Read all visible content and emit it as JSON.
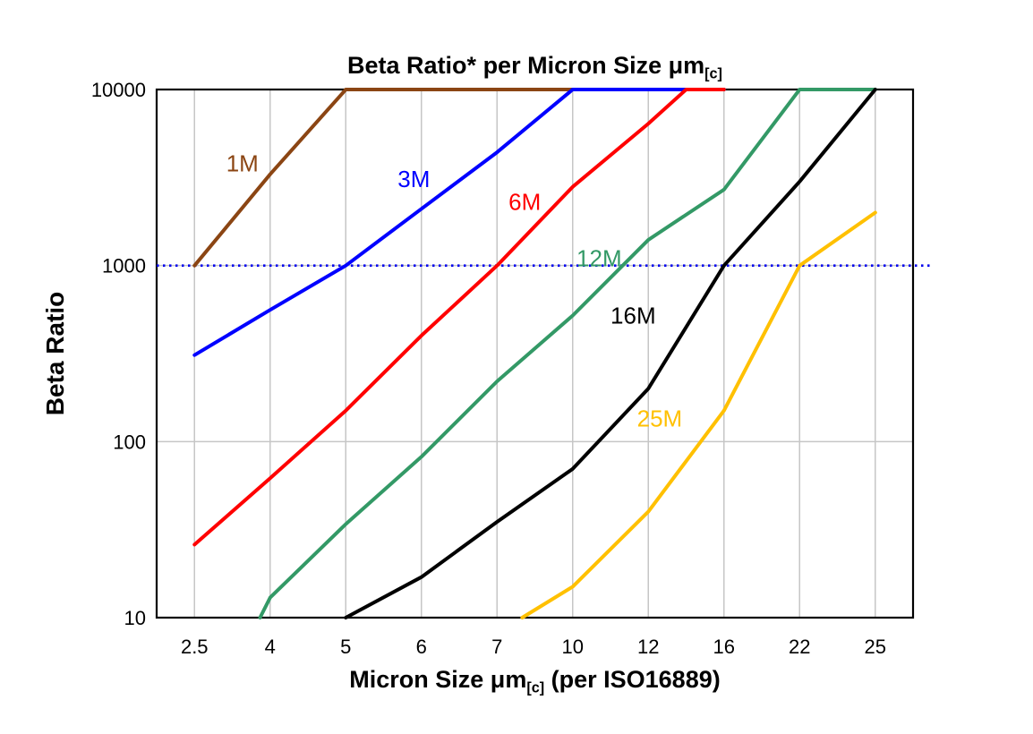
{
  "chart_data": {
    "type": "line",
    "title": "Beta Ratio* per Micron Size μm[c]",
    "title_parts": {
      "main": "Beta Ratio* per Micron Size ",
      "mu": "μm",
      "sub": "[c]"
    },
    "x_axis": {
      "label_parts": {
        "pre": "Micron Size ",
        "mu": "μm",
        "sub": "[c]",
        "post": " (per ISO16889)"
      },
      "categories": [
        2.5,
        4,
        5,
        6,
        7,
        10,
        12,
        16,
        22,
        25
      ],
      "tick_labels": [
        "2.5",
        "4",
        "5",
        "6",
        "7",
        "10",
        "12",
        "16",
        "22",
        "25"
      ]
    },
    "y_axis": {
      "label": "Beta Ratio",
      "scale": "log",
      "range": [
        10,
        10000
      ],
      "ticks": [
        10,
        100,
        1000,
        10000
      ],
      "tick_labels": [
        "10",
        "100",
        "1000",
        "10000"
      ]
    },
    "grid": {
      "color": "#c6c6c6",
      "horizontal_at": [
        100,
        1000
      ]
    },
    "reference_line": {
      "value": 1000,
      "color": "#0000ee",
      "style": "dotted"
    },
    "series": [
      {
        "name": "1M",
        "color": "#8B4513",
        "points": [
          [
            2.5,
            1000
          ],
          [
            4,
            3300
          ],
          [
            5,
            10000
          ],
          [
            7,
            10000
          ],
          [
            10,
            10000
          ]
        ],
        "label": {
          "text": "1M",
          "x": 3.45,
          "y": 3800
        }
      },
      {
        "name": "3M",
        "color": "#0000FF",
        "points": [
          [
            2.5,
            310
          ],
          [
            4,
            560
          ],
          [
            5,
            1000
          ],
          [
            6,
            2100
          ],
          [
            7,
            4400
          ],
          [
            10,
            10000
          ],
          [
            12,
            10000
          ],
          [
            16,
            10000
          ]
        ],
        "label": {
          "text": "3M",
          "x": 5.9,
          "y": 3100
        }
      },
      {
        "name": "6M",
        "color": "#FF0000",
        "points": [
          [
            2.5,
            26
          ],
          [
            4,
            62
          ],
          [
            5,
            150
          ],
          [
            6,
            400
          ],
          [
            7,
            1000
          ],
          [
            10,
            2800
          ],
          [
            12,
            6400
          ],
          [
            14,
            10000
          ],
          [
            16,
            10000
          ]
        ],
        "label": {
          "text": "6M",
          "x": 8.1,
          "y": 2300
        }
      },
      {
        "name": "12M",
        "color": "#339966",
        "points": [
          [
            3.8,
            10
          ],
          [
            4,
            13
          ],
          [
            5,
            34
          ],
          [
            6,
            82
          ],
          [
            7,
            220
          ],
          [
            10,
            520
          ],
          [
            12,
            1400
          ],
          [
            16,
            2700
          ],
          [
            22,
            10000
          ],
          [
            25,
            10000
          ]
        ],
        "label": {
          "text": "12M",
          "x": 10.7,
          "y": 1100
        }
      },
      {
        "name": "16M",
        "color": "#000000",
        "points": [
          [
            5,
            10
          ],
          [
            6,
            17
          ],
          [
            7,
            35
          ],
          [
            10,
            70
          ],
          [
            12,
            200
          ],
          [
            16,
            1000
          ],
          [
            22,
            3000
          ],
          [
            25,
            10000
          ]
        ],
        "label": {
          "text": "16M",
          "x": 11.6,
          "y": 520
        }
      },
      {
        "name": "25M",
        "color": "#FFC000",
        "points": [
          [
            8,
            10
          ],
          [
            10,
            15
          ],
          [
            12,
            40
          ],
          [
            16,
            150
          ],
          [
            22,
            1000
          ],
          [
            25,
            2000
          ]
        ],
        "label": {
          "text": "25M",
          "x": 12.6,
          "y": 135
        }
      }
    ]
  }
}
